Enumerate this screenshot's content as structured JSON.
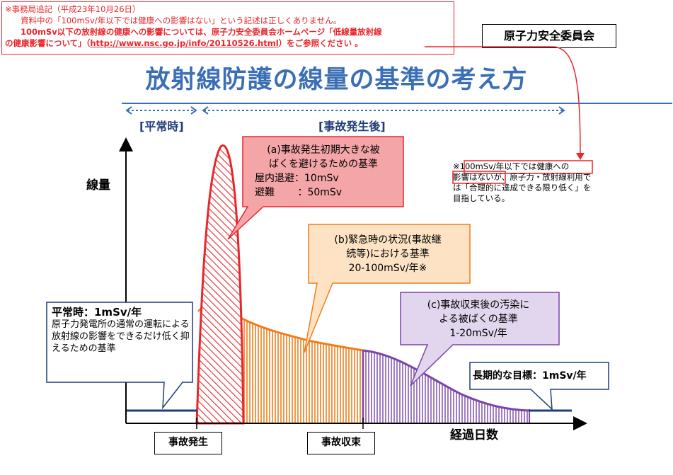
{
  "notice": {
    "line1": "※事務局追記（平成23年10月26日）",
    "line2": "資料中の「100mSv/年以下では健康への影響はない」という記述は正しくありません。",
    "line3": "100mSv以下の放射線の健康への影響については、原子力安全委員会ホームページ「低線量放射線",
    "line4a": "の健康影響について」（",
    "line4url": "http://www.nsc.go.jp/info/20110526.html",
    "line4b": "）をご参照ください 。"
  },
  "org": "原子力安全委員会",
  "title": "放射線防護の線量の基準の考え方",
  "periods": {
    "normal": "[平常時]",
    "after": "[事故発生後]"
  },
  "axes": {
    "y": "線量",
    "x": "経過日数"
  },
  "bubble_a": {
    "line1": "(a)事故発生初期大きな被",
    "line2": "ばくを避けるための基準",
    "line3": "屋内退避：10mSv",
    "line4": "避難　　 ：50mSv"
  },
  "bubble_b": {
    "line1": "(b)緊急時の状況(事故継",
    "line2": "続等)における基準",
    "line3": "20-100mSv/年※"
  },
  "bubble_c": {
    "line1": "(c)事故収束後の汚染に",
    "line2": "よる被ばくの基準",
    "line3": "1-20mSv/年"
  },
  "bubble_normal": {
    "title": "平常時：1mSv/年",
    "body": "原子力発電所の通常の運転による放射線の影響をできるだけ低く抑えるための基準"
  },
  "bubble_longterm": "長期的な目標：1mSv/年",
  "side_note": {
    "mark": "※",
    "hl1": "100mSv/年以下では健康への",
    "hl2": "影響はない",
    "rest": "が、原子力・放射線利用では「合理的に達成できる限り低く」を目指している。"
  },
  "events": {
    "occur": "事故発生",
    "converge": "事故収束"
  },
  "colors": {
    "red": "#e8262b",
    "orange": "#f07d1a",
    "purple": "#7b44a8",
    "blue": "#1f3d7a",
    "title": "#3b6fb5"
  }
}
